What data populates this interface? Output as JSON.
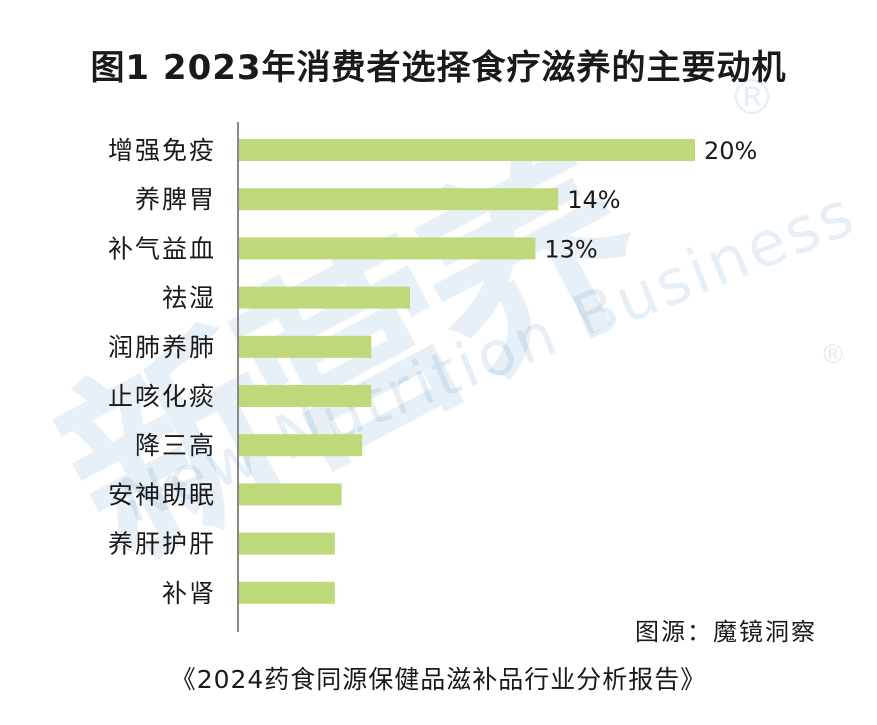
{
  "chart_data": {
    "type": "bar",
    "orientation": "horizontal",
    "title": "图1 2023年消费者选择食疗滋养的主要动机",
    "categories": [
      "增强免疫",
      "养脾胃",
      "补气益血",
      "祛湿",
      "润肺养肺",
      "止咳化痰",
      "降三高",
      "安神助眠",
      "养肝护肝",
      "补肾"
    ],
    "values": [
      20,
      14,
      13,
      7.5,
      5.8,
      5.8,
      5.4,
      4.5,
      4.2,
      4.2
    ],
    "value_labels": [
      "20%",
      "14%",
      "13%",
      "",
      "",
      "",
      "",
      "",
      "",
      ""
    ],
    "xlim": [
      0,
      25
    ],
    "grid": false,
    "colors": {
      "bar": "#bdd97a",
      "axis": "#888888"
    }
  },
  "source": "图源：魔镜洞察",
  "report": "《2024药食同源保健品滋补品行业分析报告》",
  "watermark": {
    "cn": "新营养",
    "en": "New Nutrition Business",
    "mark": "®"
  }
}
